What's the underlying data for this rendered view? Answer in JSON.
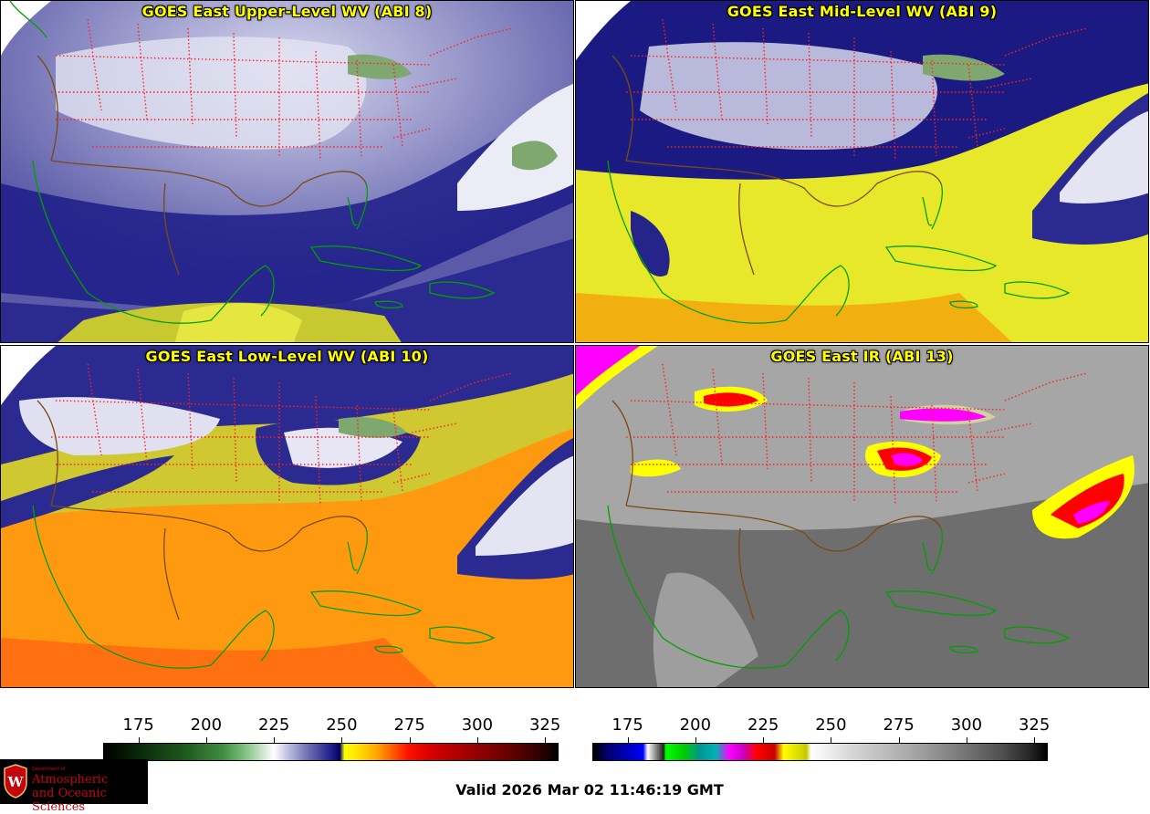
{
  "panels": [
    {
      "title": "GOES East Upper-Level WV (ABI 8)",
      "palette": "wv"
    },
    {
      "title": "GOES East Mid-Level WV (ABI 9)",
      "palette": "wv"
    },
    {
      "title": "GOES East Low-Level WV (ABI 10)",
      "palette": "wv"
    },
    {
      "title": "GOES East IR (ABI 13)",
      "palette": "ir"
    }
  ],
  "colorbars": {
    "left": {
      "ticks": [
        "175",
        "200",
        "225",
        "250",
        "275",
        "300",
        "325"
      ],
      "range": [
        162,
        330
      ]
    },
    "right": {
      "ticks": [
        "175",
        "200",
        "225",
        "250",
        "275",
        "300",
        "325"
      ],
      "range": [
        162,
        330
      ]
    }
  },
  "logo": {
    "department": "Department of",
    "name_line1": "Atmospheric",
    "name_line2": "and Oceanic Sciences"
  },
  "valid_time": "Valid 2026 Mar 02 11:46:19 GMT",
  "colors": {
    "title": "#ffff00",
    "coastline": "#00a000",
    "state_lines": "#ff2020",
    "country_border": "#7a4a10"
  }
}
